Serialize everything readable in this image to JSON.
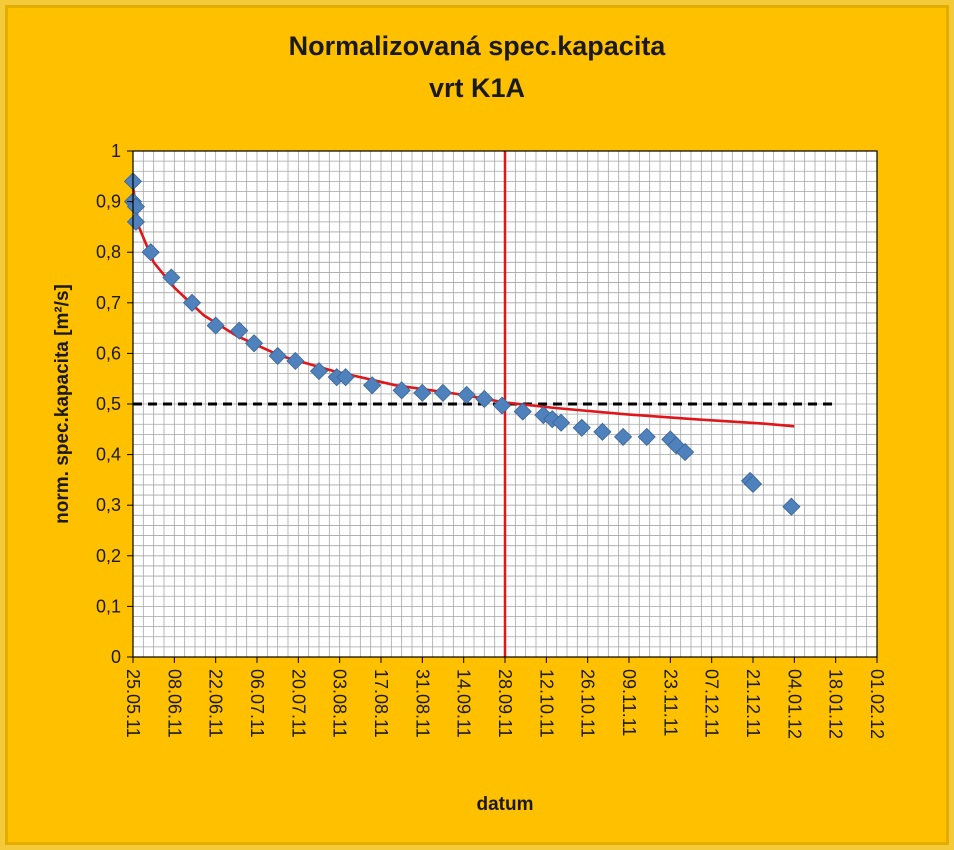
{
  "chart_data": {
    "type": "scatter",
    "title": "Normalizovaná spec.kapacita",
    "subtitle": "vrt K1A",
    "xlabel": "datum",
    "ylabel": "norm. spec.kapacita [m²/s]",
    "x_type": "date",
    "x_range": [
      "2011-05-25",
      "2012-02-01"
    ],
    "x_tick_labels": [
      "25.05.11",
      "08.06.11",
      "22.06.11",
      "06.07.11",
      "20.07.11",
      "03.08.11",
      "17.08.11",
      "31.08.11",
      "14.09.11",
      "28.09.11",
      "12.10.11",
      "26.10.11",
      "09.11.11",
      "23.11.11",
      "07.12.11",
      "21.12.11",
      "04.01.12",
      "18.01.12",
      "01.02.12"
    ],
    "ylim": [
      0,
      1
    ],
    "y_tick_labels": [
      "0",
      "0,1",
      "0,2",
      "0,3",
      "0,4",
      "0,5",
      "0,6",
      "0,7",
      "0,8",
      "0,9",
      "1"
    ],
    "grid": true,
    "legend": "none",
    "series": [
      {
        "type": "scatter",
        "color": "#4f81bd",
        "marker": "diamond",
        "points": [
          {
            "x": "2011-05-25",
            "y": 0.94
          },
          {
            "x": "2011-05-25",
            "y": 0.9
          },
          {
            "x": "2011-05-26",
            "y": 0.89
          },
          {
            "x": "2011-05-26",
            "y": 0.86
          },
          {
            "x": "2011-05-31",
            "y": 0.8
          },
          {
            "x": "2011-06-07",
            "y": 0.75
          },
          {
            "x": "2011-06-14",
            "y": 0.7
          },
          {
            "x": "2011-06-22",
            "y": 0.655
          },
          {
            "x": "2011-06-30",
            "y": 0.645
          },
          {
            "x": "2011-07-05",
            "y": 0.62
          },
          {
            "x": "2011-07-13",
            "y": 0.595
          },
          {
            "x": "2011-07-19",
            "y": 0.585
          },
          {
            "x": "2011-07-27",
            "y": 0.565
          },
          {
            "x": "2011-08-02",
            "y": 0.553
          },
          {
            "x": "2011-08-05",
            "y": 0.553
          },
          {
            "x": "2011-08-14",
            "y": 0.537
          },
          {
            "x": "2011-08-24",
            "y": 0.527
          },
          {
            "x": "2011-08-31",
            "y": 0.522
          },
          {
            "x": "2011-09-07",
            "y": 0.522
          },
          {
            "x": "2011-09-15",
            "y": 0.518
          },
          {
            "x": "2011-09-21",
            "y": 0.51
          },
          {
            "x": "2011-09-27",
            "y": 0.497
          },
          {
            "x": "2011-10-04",
            "y": 0.485
          },
          {
            "x": "2011-10-11",
            "y": 0.478
          },
          {
            "x": "2011-10-14",
            "y": 0.47
          },
          {
            "x": "2011-10-17",
            "y": 0.463
          },
          {
            "x": "2011-10-24",
            "y": 0.453
          },
          {
            "x": "2011-10-31",
            "y": 0.445
          },
          {
            "x": "2011-11-07",
            "y": 0.435
          },
          {
            "x": "2011-11-15",
            "y": 0.435
          },
          {
            "x": "2011-11-23",
            "y": 0.43
          },
          {
            "x": "2011-11-25",
            "y": 0.418
          },
          {
            "x": "2011-11-28",
            "y": 0.405
          },
          {
            "x": "2011-12-20",
            "y": 0.348
          },
          {
            "x": "2011-12-21",
            "y": 0.342
          },
          {
            "x": "2012-01-03",
            "y": 0.297
          }
        ]
      },
      {
        "type": "line",
        "color": "#e0161b",
        "style": "solid",
        "points": [
          {
            "x": "2011-05-25",
            "y": 0.93
          },
          {
            "x": "2011-05-27",
            "y": 0.85
          },
          {
            "x": "2011-06-01",
            "y": 0.78
          },
          {
            "x": "2011-06-08",
            "y": 0.73
          },
          {
            "x": "2011-06-18",
            "y": 0.675
          },
          {
            "x": "2011-06-29",
            "y": 0.635
          },
          {
            "x": "2011-07-14",
            "y": 0.595
          },
          {
            "x": "2011-08-01",
            "y": 0.565
          },
          {
            "x": "2011-08-22",
            "y": 0.537
          },
          {
            "x": "2011-09-14",
            "y": 0.518
          },
          {
            "x": "2011-09-28",
            "y": 0.503
          },
          {
            "x": "2011-10-15",
            "y": 0.492
          },
          {
            "x": "2011-11-07",
            "y": 0.48
          },
          {
            "x": "2011-12-01",
            "y": 0.47
          },
          {
            "x": "2011-12-25",
            "y": 0.461
          },
          {
            "x": "2012-01-04",
            "y": 0.456
          }
        ]
      }
    ],
    "reference_lines": [
      {
        "orientation": "horizontal",
        "y": 0.5,
        "x_from": "2011-05-25",
        "x_to": "2012-01-18",
        "color": "#000000",
        "style": "dashed"
      },
      {
        "orientation": "vertical",
        "x": "2011-09-28",
        "color": "#e0161b",
        "style": "solid"
      }
    ]
  }
}
